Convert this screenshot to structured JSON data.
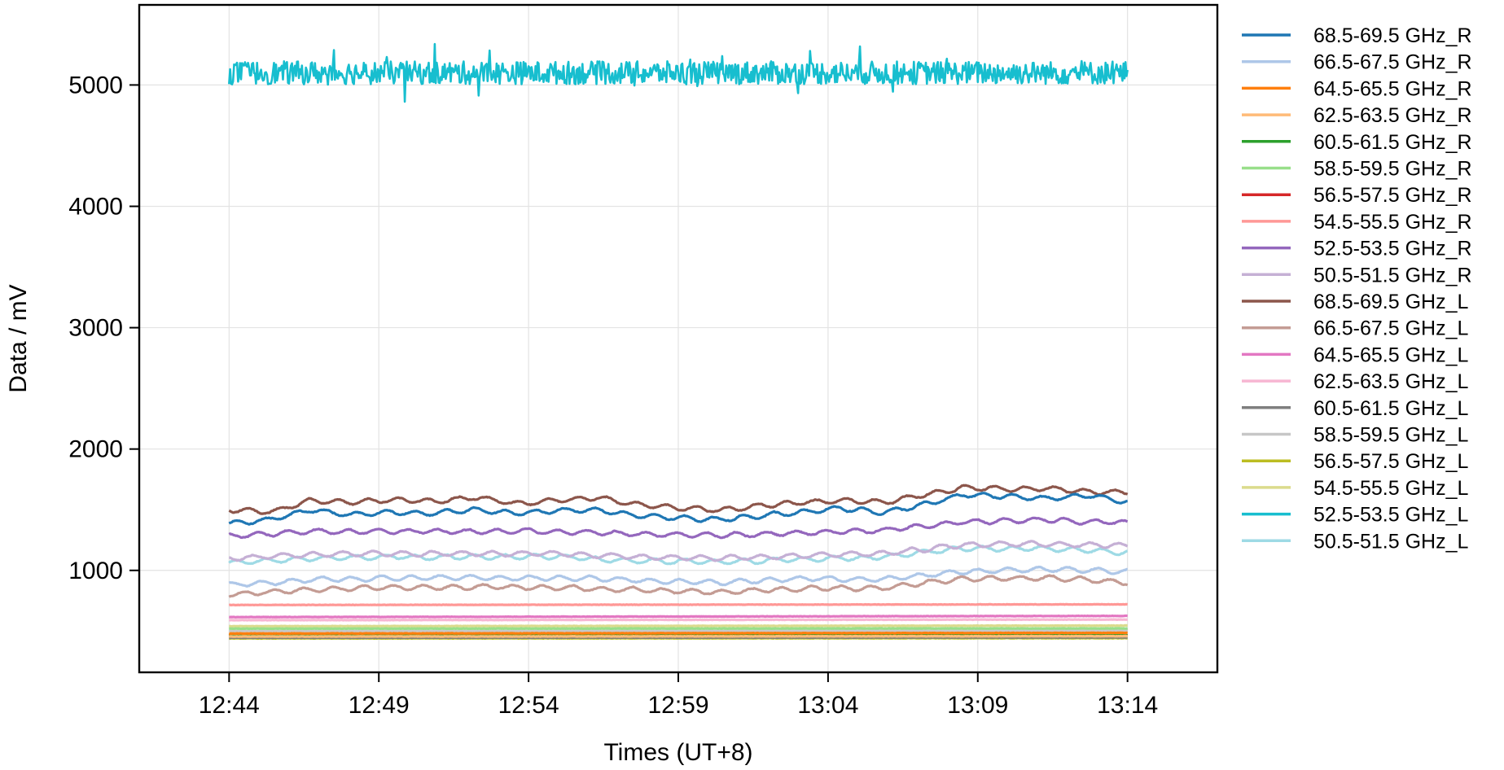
{
  "chart_data": {
    "type": "line",
    "title": "",
    "xlabel": "Times (UT+8)",
    "ylabel": "Data / mV",
    "xlim": [
      "12:41",
      "13:17"
    ],
    "ylim": [
      160,
      5660
    ],
    "x_start": "12:44",
    "x_end": "13:14",
    "x_ticks": [
      "12:44",
      "12:49",
      "12:54",
      "12:59",
      "13:04",
      "13:09",
      "13:14"
    ],
    "y_ticks": [
      1000,
      2000,
      3000,
      4000,
      5000
    ],
    "grid": true,
    "legend": {
      "position": "right-outside"
    },
    "series": [
      {
        "name": "68.5-69.5 GHz_R",
        "color": "#1f77b4",
        "anchors": [
          [
            0,
            1390
          ],
          [
            2,
            1420
          ],
          [
            4,
            1500
          ],
          [
            6,
            1460
          ],
          [
            8,
            1480
          ],
          [
            10,
            1470
          ],
          [
            12,
            1500
          ],
          [
            14,
            1470
          ],
          [
            16,
            1490
          ],
          [
            18,
            1500
          ],
          [
            20,
            1450
          ],
          [
            22,
            1430
          ],
          [
            24,
            1420
          ],
          [
            26,
            1450
          ],
          [
            28,
            1480
          ],
          [
            30,
            1510
          ],
          [
            32,
            1480
          ],
          [
            34,
            1540
          ],
          [
            36,
            1620
          ],
          [
            38,
            1610
          ],
          [
            40,
            1590
          ],
          [
            42,
            1620
          ],
          [
            44,
            1560
          ]
        ]
      },
      {
        "name": "66.5-67.5 GHz_R",
        "color": "#aec7e8",
        "anchors": [
          [
            0,
            880
          ],
          [
            4,
            920
          ],
          [
            8,
            940
          ],
          [
            12,
            940
          ],
          [
            16,
            940
          ],
          [
            20,
            920
          ],
          [
            24,
            900
          ],
          [
            28,
            930
          ],
          [
            32,
            930
          ],
          [
            36,
            990
          ],
          [
            40,
            1010
          ],
          [
            44,
            990
          ]
        ]
      },
      {
        "name": "64.5-65.5 GHz_R",
        "color": "#ff7f0e",
        "anchors": [
          [
            0,
            480
          ],
          [
            44,
            485
          ]
        ]
      },
      {
        "name": "62.5-63.5 GHz_R",
        "color": "#ffbb78",
        "anchors": [
          [
            0,
            455
          ],
          [
            44,
            458
          ]
        ]
      },
      {
        "name": "60.5-61.5 GHz_R",
        "color": "#2ca02c",
        "anchors": [
          [
            0,
            470
          ],
          [
            44,
            472
          ]
        ]
      },
      {
        "name": "58.5-59.5 GHz_R",
        "color": "#98df8a",
        "anchors": [
          [
            0,
            520
          ],
          [
            44,
            522
          ]
        ]
      },
      {
        "name": "56.5-57.5 GHz_R",
        "color": "#d62728",
        "anchors": [
          [
            0,
            462
          ],
          [
            44,
            465
          ]
        ]
      },
      {
        "name": "54.5-55.5 GHz_R",
        "color": "#ff9896",
        "anchors": [
          [
            0,
            715
          ],
          [
            44,
            720
          ]
        ]
      },
      {
        "name": "52.5-53.5 GHz_R",
        "color": "#9467bd",
        "anchors": [
          [
            0,
            1280
          ],
          [
            4,
            1320
          ],
          [
            8,
            1320
          ],
          [
            12,
            1320
          ],
          [
            16,
            1320
          ],
          [
            20,
            1300
          ],
          [
            24,
            1290
          ],
          [
            28,
            1310
          ],
          [
            32,
            1330
          ],
          [
            36,
            1400
          ],
          [
            40,
            1420
          ],
          [
            44,
            1390
          ]
        ]
      },
      {
        "name": "50.5-51.5 GHz_R",
        "color": "#c5b0d5",
        "anchors": [
          [
            0,
            1100
          ],
          [
            4,
            1130
          ],
          [
            8,
            1140
          ],
          [
            12,
            1140
          ],
          [
            16,
            1140
          ],
          [
            20,
            1110
          ],
          [
            24,
            1100
          ],
          [
            28,
            1120
          ],
          [
            32,
            1140
          ],
          [
            36,
            1210
          ],
          [
            40,
            1220
          ],
          [
            44,
            1200
          ]
        ]
      },
      {
        "name": "68.5-69.5 GHz_L",
        "color": "#8c564b",
        "anchors": [
          [
            0,
            1500
          ],
          [
            2,
            1480
          ],
          [
            4,
            1580
          ],
          [
            6,
            1560
          ],
          [
            8,
            1580
          ],
          [
            10,
            1570
          ],
          [
            12,
            1600
          ],
          [
            14,
            1550
          ],
          [
            16,
            1580
          ],
          [
            18,
            1600
          ],
          [
            20,
            1540
          ],
          [
            22,
            1520
          ],
          [
            24,
            1500
          ],
          [
            26,
            1530
          ],
          [
            28,
            1560
          ],
          [
            30,
            1580
          ],
          [
            32,
            1560
          ],
          [
            34,
            1620
          ],
          [
            36,
            1680
          ],
          [
            38,
            1670
          ],
          [
            40,
            1680
          ],
          [
            42,
            1650
          ],
          [
            44,
            1640
          ]
        ]
      },
      {
        "name": "66.5-67.5 GHz_L",
        "color": "#c49c94",
        "anchors": [
          [
            0,
            800
          ],
          [
            4,
            840
          ],
          [
            8,
            860
          ],
          [
            12,
            860
          ],
          [
            16,
            860
          ],
          [
            20,
            840
          ],
          [
            24,
            820
          ],
          [
            28,
            850
          ],
          [
            32,
            860
          ],
          [
            36,
            930
          ],
          [
            40,
            940
          ],
          [
            44,
            900
          ]
        ]
      },
      {
        "name": "64.5-65.5 GHz_L",
        "color": "#e377c2",
        "anchors": [
          [
            0,
            615
          ],
          [
            44,
            625
          ]
        ]
      },
      {
        "name": "62.5-63.5 GHz_L",
        "color": "#f7b6d2",
        "anchors": [
          [
            0,
            590
          ],
          [
            44,
            595
          ]
        ]
      },
      {
        "name": "60.5-61.5 GHz_L",
        "color": "#7f7f7f",
        "anchors": [
          [
            0,
            445
          ],
          [
            44,
            448
          ]
        ]
      },
      {
        "name": "58.5-59.5 GHz_L",
        "color": "#c7c7c7",
        "anchors": [
          [
            0,
            500
          ],
          [
            44,
            502
          ]
        ]
      },
      {
        "name": "56.5-57.5 GHz_L",
        "color": "#bcbd22",
        "anchors": [
          [
            0,
            440
          ],
          [
            44,
            442
          ]
        ]
      },
      {
        "name": "54.5-55.5 GHz_L",
        "color": "#dbdb8d",
        "anchors": [
          [
            0,
            540
          ],
          [
            44,
            545
          ]
        ]
      },
      {
        "name": "52.5-53.5 GHz_L",
        "color": "#17becf",
        "anchors": [
          [
            0,
            5100
          ],
          [
            44,
            5100
          ]
        ]
      },
      {
        "name": "50.5-51.5 GHz_L",
        "color": "#9edae5",
        "anchors": [
          [
            0,
            1060
          ],
          [
            4,
            1100
          ],
          [
            8,
            1110
          ],
          [
            12,
            1110
          ],
          [
            16,
            1110
          ],
          [
            20,
            1080
          ],
          [
            24,
            1070
          ],
          [
            28,
            1090
          ],
          [
            32,
            1110
          ],
          [
            36,
            1180
          ],
          [
            40,
            1180
          ],
          [
            44,
            1150
          ]
        ]
      }
    ]
  }
}
